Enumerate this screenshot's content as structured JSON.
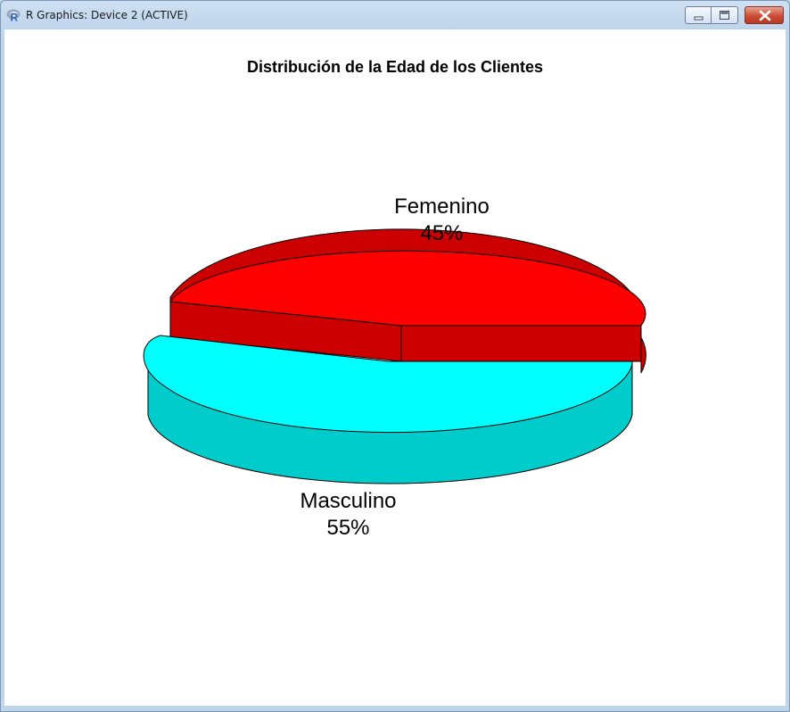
{
  "window": {
    "title": "R Graphics: Device 2 (ACTIVE)"
  },
  "titlebar_icons": {
    "app": "r-logo-icon",
    "minimize": "minimize-icon",
    "maximize": "maximize-icon",
    "close": "close-icon"
  },
  "chart_data": {
    "type": "pie",
    "title": "Distribución de la Edad de los Clientes",
    "style": "3d-exploded",
    "slices": [
      {
        "name": "Femenino",
        "percent_label": "45%",
        "value": 45,
        "color": "#ff0000",
        "side_color": "#cc0000"
      },
      {
        "name": "Masculino",
        "percent_label": "55%",
        "value": 55,
        "color": "#00ffff",
        "side_color": "#00cccc"
      }
    ]
  }
}
